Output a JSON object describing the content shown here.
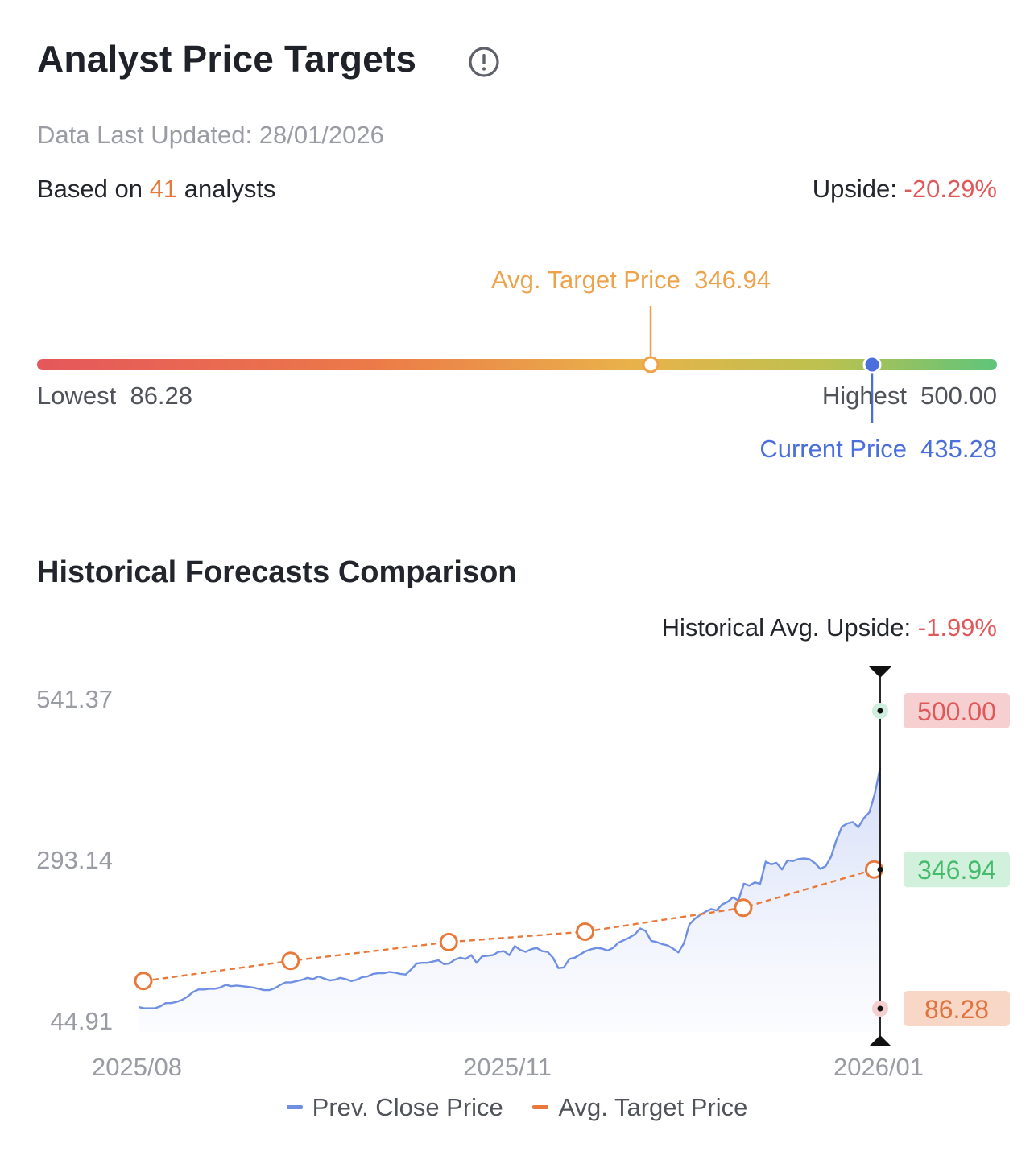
{
  "header": {
    "title": "Analyst Price Targets",
    "info_icon": "info-icon",
    "updated": "Data Last Updated: 28/01/2026",
    "based_prefix": "Based on ",
    "analyst_count": "41",
    "based_suffix": " analysts",
    "upside_label": "Upside: ",
    "upside_value": "-20.29%"
  },
  "range": {
    "avg_label": "Avg. Target Price  ",
    "avg_value": "346.94",
    "lowest_label": "Lowest  ",
    "lowest_value": "86.28",
    "highest_label": "Highest  ",
    "highest_value": "500.00",
    "current_label": "Current Price  ",
    "current_value": "435.28",
    "low": 86.28,
    "high": 500.0,
    "avg": 346.94,
    "current": 435.28,
    "colors": {
      "avg": "#eea24a",
      "current": "#4a6edb",
      "gradient": [
        "#e5575b",
        "#ec7a48",
        "#e9b24a",
        "#bcc14f",
        "#5fc47a"
      ]
    }
  },
  "history": {
    "title": "Historical Forecasts Comparison",
    "avg_upside_label": "Historical Avg. Upside: ",
    "avg_upside_value": "-1.99%",
    "legend": [
      {
        "name": "legend-prev-close",
        "label": "Prev. Close Price",
        "color": "#6f8fe3"
      },
      {
        "name": "legend-avg-target",
        "label": "Avg. Target Price",
        "color": "#e8793a"
      }
    ]
  },
  "chart_data": {
    "type": "line",
    "yticks": [
      "541.37",
      "293.14",
      "44.91"
    ],
    "ylim": [
      44.91,
      541.37
    ],
    "xticks": [
      "2025/08",
      "2025/11",
      "2026/01"
    ],
    "series": [
      {
        "name": "Prev. Close Price",
        "color": "#6f8fe3",
        "area": true,
        "values": [
          66,
          64,
          64,
          64,
          67,
          72,
          72,
          74,
          77,
          82,
          89,
          93,
          93,
          94,
          94,
          96,
          100,
          98,
          99,
          98,
          97,
          96,
          94,
          92,
          92,
          95,
          100,
          104,
          104,
          106,
          108,
          111,
          109,
          113,
          110,
          107,
          108,
          111,
          109,
          106,
          108,
          112,
          113,
          117,
          118,
          118,
          120,
          119,
          117,
          116,
          124,
          133,
          134,
          134,
          136,
          138,
          132,
          133,
          139,
          142,
          140,
          146,
          134,
          144,
          145,
          146,
          151,
          152,
          146,
          160,
          154,
          151,
          155,
          157,
          152,
          151,
          142,
          126,
          127,
          140,
          142,
          147,
          152,
          155,
          157,
          156,
          153,
          157,
          165,
          169,
          173,
          178,
          187,
          183,
          168,
          166,
          163,
          161,
          156,
          150,
          164,
          193,
          202,
          208,
          213,
          217,
          215,
          224,
          228,
          235,
          230,
          256,
          253,
          258,
          256,
          290,
          286,
          288,
          278,
          292,
          291,
          294,
          295,
          294,
          288,
          279,
          283,
          298,
          324,
          344,
          349,
          351,
          343,
          357,
          366,
          394
        ],
        "end_value": 435.28
      },
      {
        "name": "Avg. Target Price",
        "color": "#e8793a",
        "dashed": true,
        "points": [
          {
            "i": 0,
            "value": 106
          },
          {
            "i": 27,
            "value": 137
          },
          {
            "i": 56,
            "value": 166
          },
          {
            "i": 81,
            "value": 182
          },
          {
            "i": 110,
            "value": 219
          },
          {
            "i": 134,
            "value": 278
          }
        ]
      }
    ],
    "end_markers": [
      {
        "label": "500.00",
        "value": 500.0,
        "text_color": "#e0595a",
        "bg": "#f6d0d0",
        "dot": "#cfeedd"
      },
      {
        "label": "346.94",
        "value": 346.94,
        "text_color": "#45bb6c",
        "bg": "#d2f1dc",
        "dot": "#fbd8c4"
      },
      {
        "label": "86.28",
        "value": 86.28,
        "text_color": "#e07440",
        "bg": "#f8d7c7",
        "dot": "#f3cfcf"
      }
    ]
  }
}
